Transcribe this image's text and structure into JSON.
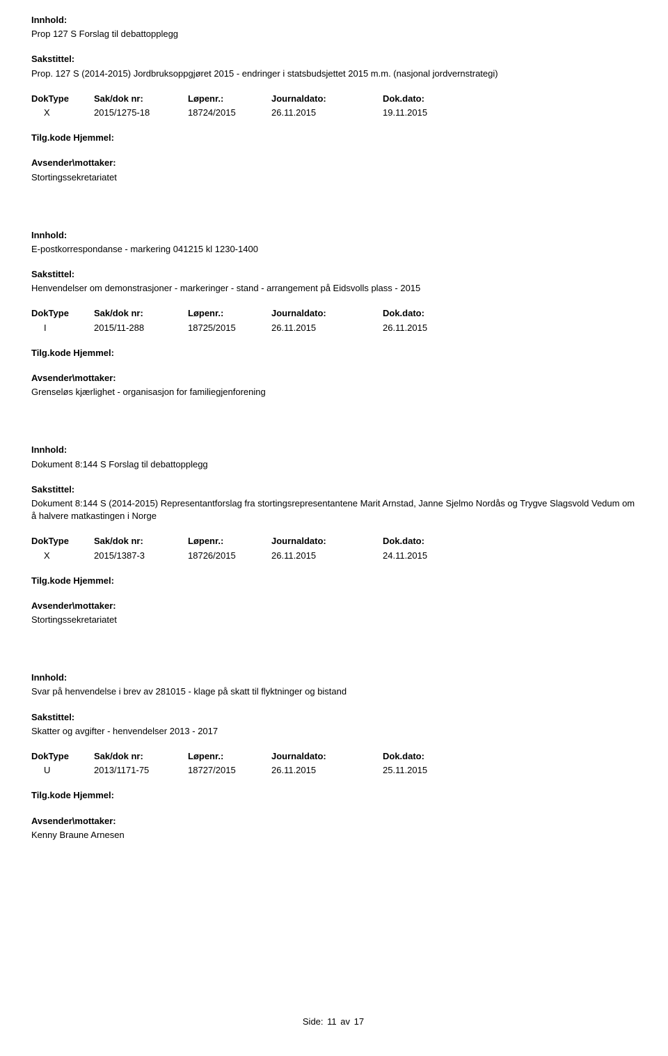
{
  "labels": {
    "innhold": "Innhold:",
    "sakstittel": "Sakstittel:",
    "doktype": "DokType",
    "sakdoknr": "Sak/dok nr:",
    "lopenr": "Løpenr.:",
    "journaldato": "Journaldato:",
    "dokdato": "Dok.dato:",
    "tilgkode": "Tilg.kode",
    "hjemmel": "Hjemmel:",
    "avsender": "Avsender\\mottaker:"
  },
  "entries": [
    {
      "innhold": "Prop 127 S Forslag til debattopplegg",
      "sakstittel": "Prop. 127 S (2014-2015) Jordbruksoppgjøret 2015 - endringer i statsbudsjettet 2015 m.m. (nasjonal jordvernstrategi)",
      "doktype": "X",
      "sakdoknr": "2015/1275-18",
      "lopenr": "18724/2015",
      "journaldato": "26.11.2015",
      "dokdato": "19.11.2015",
      "avsender": "Stortingssekretariatet"
    },
    {
      "innhold": "E-postkorrespondanse - markering 041215 kl 1230-1400",
      "sakstittel": "Henvendelser om demonstrasjoner - markeringer - stand - arrangement på Eidsvolls plass - 2015",
      "doktype": "I",
      "sakdoknr": "2015/11-288",
      "lopenr": "18725/2015",
      "journaldato": "26.11.2015",
      "dokdato": "26.11.2015",
      "avsender": "Grenseløs kjærlighet - organisasjon for familiegjenforening"
    },
    {
      "innhold": "Dokument 8:144 S Forslag til debattopplegg",
      "sakstittel": "Dokument 8:144 S (2014-2015) Representantforslag fra stortingsrepresentantene Marit Arnstad, Janne Sjelmo Nordås og Trygve Slagsvold Vedum om å halvere matkastingen i Norge",
      "doktype": "X",
      "sakdoknr": "2015/1387-3",
      "lopenr": "18726/2015",
      "journaldato": "26.11.2015",
      "dokdato": "24.11.2015",
      "avsender": "Stortingssekretariatet"
    },
    {
      "innhold": "Svar på henvendelse i brev av 281015 - klage på skatt til flyktninger og bistand",
      "sakstittel": "Skatter og avgifter - henvendelser 2013 - 2017",
      "doktype": "U",
      "sakdoknr": "2013/1171-75",
      "lopenr": "18727/2015",
      "journaldato": "26.11.2015",
      "dokdato": "25.11.2015",
      "avsender": "Kenny Braune Arnesen"
    }
  ],
  "footer": {
    "prefix": "Side:",
    "page": "11",
    "of": "av",
    "total": "17"
  }
}
